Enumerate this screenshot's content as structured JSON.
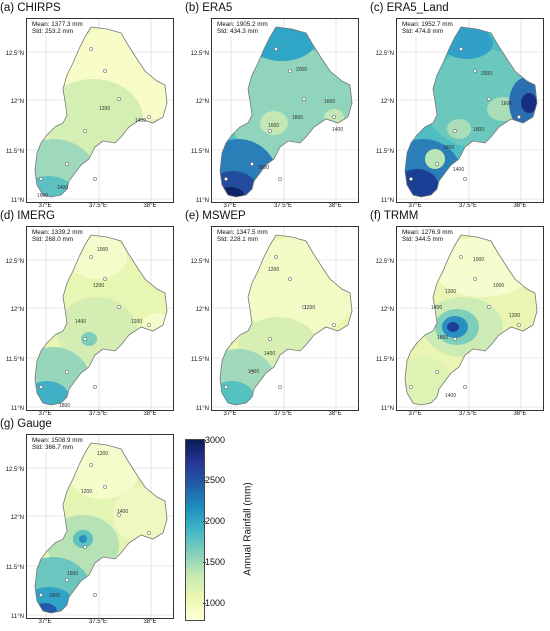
{
  "panels": [
    {
      "title": "(a) CHIRPS",
      "mean": "Mean: 1377.3 mm",
      "std": "Std: 253.2 mm"
    },
    {
      "title": "(b) ERA5",
      "mean": "Mean: 1905.2 mm",
      "std": "Std: 434.3 mm"
    },
    {
      "title": "(c) ERA5_Land",
      "mean": "Mean: 1952.7 mm",
      "std": "Std: 474.8 mm"
    },
    {
      "title": "(d) IMERG",
      "mean": "Mean: 1339.2 mm",
      "std": "Std: 268.0 mm"
    },
    {
      "title": "(e) MSWEP",
      "mean": "Mean: 1347.5 mm",
      "std": "Std: 228.1 mm"
    },
    {
      "title": "(f) TRMM",
      "mean": "Mean: 1276.9 mm",
      "std": "Std: 344.5 mm"
    },
    {
      "title": "(g) Gauge",
      "mean": "Mean: 1508.9 mm",
      "std": "Std: 366.7 mm"
    }
  ],
  "axes": {
    "lat_labels": [
      "12.5°N",
      "12°N",
      "11.5°N",
      "11°N"
    ],
    "lon_labels": [
      "37°E",
      "37.5°E",
      "38°E"
    ]
  },
  "colorbar": {
    "label": "Annual Rainfall (mm)",
    "ticks": [
      "3000",
      "2500",
      "2000",
      "1500",
      "1000"
    ],
    "colors": [
      "#ffffd9",
      "#edf8b1",
      "#c7e9b4",
      "#7fcdbb",
      "#41b6c4",
      "#1d91c0",
      "#225ea8",
      "#253494",
      "#081d58"
    ]
  },
  "contour_labels": {
    "a": [
      "1200",
      "1400",
      "1400",
      "1600"
    ],
    "b": [
      "2000",
      "1600",
      "1800",
      "1600",
      "1400",
      "2000"
    ],
    "c": [
      "2000",
      "1600",
      "1800",
      "1400",
      "1800"
    ],
    "d": [
      "1000",
      "1200",
      "1400",
      "1200",
      "1800"
    ],
    "e": [
      "1200",
      "1200",
      "1400",
      "1400"
    ],
    "f": [
      "1000",
      "1200",
      "1400",
      "1200",
      "1000",
      "1400",
      "1800"
    ],
    "g": [
      "1200",
      "1200",
      "1400",
      "1600",
      "1800"
    ]
  }
}
